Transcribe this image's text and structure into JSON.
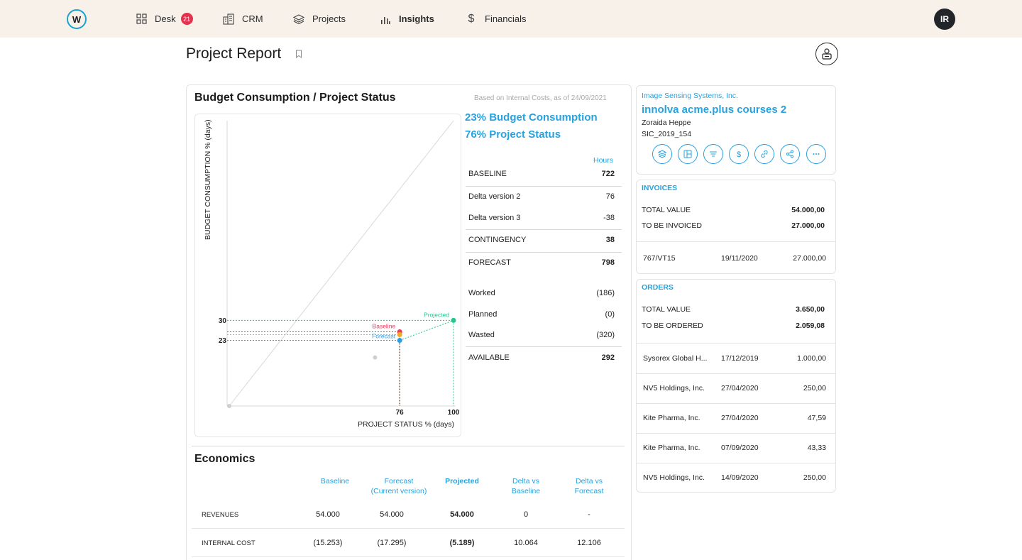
{
  "nav": {
    "items": [
      {
        "label": "Desk",
        "icon": "grid-icon",
        "badge": "21"
      },
      {
        "label": "CRM",
        "icon": "building-icon"
      },
      {
        "label": "Projects",
        "icon": "layers-icon"
      },
      {
        "label": "Insights",
        "icon": "bar-chart-icon",
        "active": true
      },
      {
        "label": "Financials",
        "icon": "dollar-icon"
      }
    ],
    "user_initials": "IR"
  },
  "page": {
    "title": "Project Report"
  },
  "budget": {
    "title": "Budget Consumption / Project Status",
    "note": "Based on Internal Costs, as of 24/09/2021",
    "headline_consumption": "23% Budget Consumption",
    "headline_status": "76% Project Status",
    "hours_header": "Hours",
    "rows": [
      {
        "label": "BASELINE",
        "value": "722",
        "bold": true
      },
      {
        "label": "Delta version 2",
        "value": "76"
      },
      {
        "label": "Delta version 3",
        "value": "-38"
      },
      {
        "label": "CONTINGENCY",
        "value": "38",
        "bold": true
      },
      {
        "label": "FORECAST",
        "value": "798",
        "bold": true
      },
      {
        "label": "Worked",
        "value": "(186)"
      },
      {
        "label": "Planned",
        "value": "(0)"
      },
      {
        "label": "Wasted",
        "value": "(320)"
      },
      {
        "label": "AVAILABLE",
        "value": "292",
        "bold": true
      }
    ]
  },
  "chart_data": {
    "type": "scatter",
    "xlabel": "PROJECT STATUS % (days)",
    "ylabel": "BUDGET CONSUMPTION % (days)",
    "xlim": [
      0,
      100
    ],
    "ylim": [
      0,
      100
    ],
    "x_tick_labels": [
      "76",
      "100"
    ],
    "y_tick_labels": [
      "30",
      "23"
    ],
    "points": [
      {
        "name": "Projected",
        "x": 100,
        "y": 30,
        "color": "#1fc98a"
      },
      {
        "name": "Baseline",
        "x": 76,
        "y": 26,
        "color": "#e83a5a"
      },
      {
        "name": "",
        "x": 76,
        "y": 25,
        "color": "#f5a623"
      },
      {
        "name": "Forecast",
        "x": 76,
        "y": 23,
        "color": "#2c9be0"
      },
      {
        "name": "",
        "x": 65,
        "y": 17,
        "color": "#cfcfcf"
      },
      {
        "name": "",
        "x": 0,
        "y": 0,
        "color": "#cfcfcf"
      }
    ]
  },
  "economics": {
    "title": "Economics",
    "headers": [
      "Baseline",
      "Forecast\n(Current version)",
      "Projected",
      "Delta vs\nBaseline",
      "Delta vs\nForecast"
    ],
    "rows": [
      {
        "label": "REVENUES",
        "values": [
          "54.000",
          "54.000",
          "54.000",
          "0",
          "-"
        ]
      },
      {
        "label": "INTERNAL COST",
        "values": [
          "(15.253)",
          "(17.295)",
          "(5.189)",
          "10.064",
          "12.106"
        ]
      }
    ]
  },
  "project": {
    "client": "Image Sensing Systems, Inc.",
    "name": "innolva acme.plus courses 2",
    "manager": "Zoraida Heppe",
    "code": "SIC_2019_154",
    "actions": [
      "layers-icon",
      "layout-icon",
      "list-icon",
      "dollar-icon",
      "link-icon",
      "share-icon",
      "more-icon"
    ]
  },
  "invoices": {
    "title": "INVOICES",
    "total_label": "TOTAL VALUE",
    "total_value": "54.000,00",
    "pending_label": "TO BE INVOICED",
    "pending_value": "27.000,00",
    "rows": [
      {
        "ref": "767/VT15",
        "date": "19/11/2020",
        "amount": "27.000,00"
      }
    ]
  },
  "orders": {
    "title": "ORDERS",
    "total_label": "TOTAL VALUE",
    "total_value": "3.650,00",
    "pending_label": "TO BE ORDERED",
    "pending_value": "2.059,08",
    "rows": [
      {
        "ref": "Sysorex Global H...",
        "date": "17/12/2019",
        "amount": "1.000,00"
      },
      {
        "ref": "NV5 Holdings, Inc.",
        "date": "27/04/2020",
        "amount": "250,00"
      },
      {
        "ref": "Kite Pharma, Inc.",
        "date": "27/04/2020",
        "amount": "47,59"
      },
      {
        "ref": "Kite Pharma, Inc.",
        "date": "07/09/2020",
        "amount": "43,33"
      },
      {
        "ref": "NV5 Holdings, Inc.",
        "date": "14/09/2020",
        "amount": "250,00"
      }
    ]
  }
}
